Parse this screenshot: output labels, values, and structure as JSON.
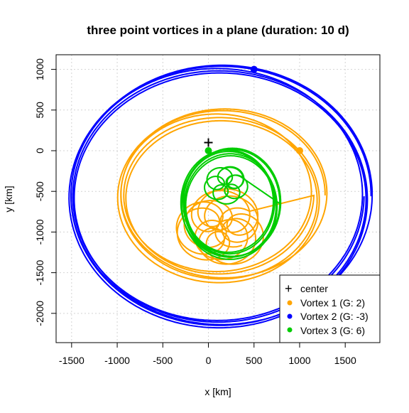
{
  "chart_data": {
    "type": "line",
    "title": "three point vortices in a plane (duration: 10 d)",
    "xlabel": "x [km]",
    "ylabel": "y [km]",
    "xlim": [
      -1670,
      1880
    ],
    "ylim": [
      -2360,
      1180
    ],
    "xticks": [
      -1500,
      -1000,
      -500,
      0,
      500,
      1000,
      1500
    ],
    "yticks": [
      -2000,
      -1500,
      -1000,
      -500,
      0,
      500,
      1000
    ],
    "grid": true,
    "legend_position": "bottom-right",
    "center": {
      "name": "center",
      "x": 0,
      "y": 100,
      "color": "#000000"
    },
    "series": [
      {
        "name": "Vortex 1 (G: 2)",
        "color": "#FFA500",
        "path": "vortex1",
        "start": {
          "x": 1000,
          "y": 0
        }
      },
      {
        "name": "Vortex 2 (G: -3)",
        "color": "#0000FF",
        "path": "vortex2",
        "start": {
          "x": 500,
          "y": 1000
        }
      },
      {
        "name": "Vortex 3 (G: 6)",
        "color": "#00CC00",
        "path": "vortex3",
        "start": {
          "x": 0,
          "y": 0
        }
      }
    ]
  }
}
